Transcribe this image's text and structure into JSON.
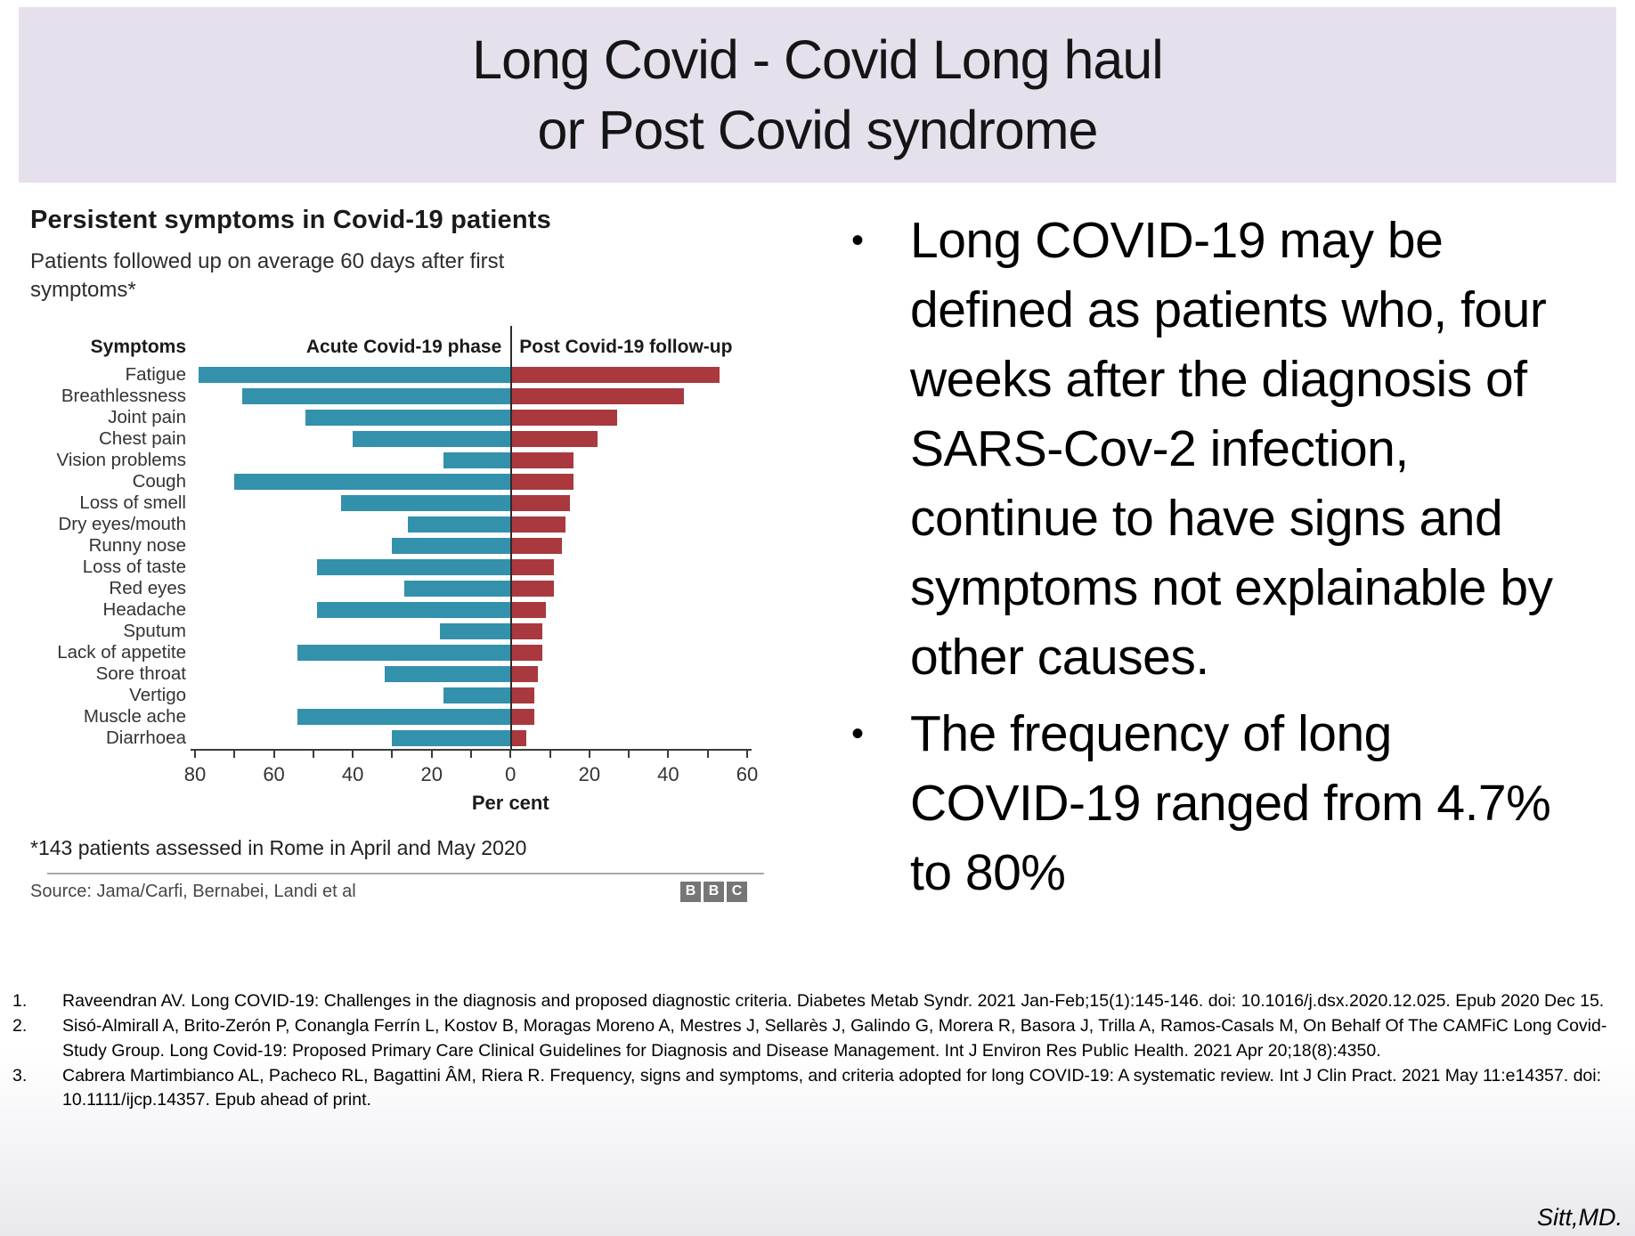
{
  "header": {
    "title_line1": "Long Covid - Covid Long haul",
    "title_line2": "or Post Covid syndrome",
    "band_color": "#e5e0ec"
  },
  "chart": {
    "title": "Persistent symptoms in Covid-19 patients",
    "subtitle": "Patients followed up on average 60 days after first symptoms*",
    "columns": {
      "symptoms": "Symptoms",
      "acute": "Acute Covid-19 phase",
      "post": "Post Covid-19 follow-up"
    },
    "percent_label": "Per cent",
    "footnote": "*143 patients assessed in Rome in April and May 2020",
    "source": "Source: Jama/Carfi, Bernabei, Landi et al",
    "logo_letters": [
      "B",
      "B",
      "C"
    ],
    "colors": {
      "acute_bar": "#3391ab",
      "post_bar": "#a9393e"
    }
  },
  "chart_data": {
    "type": "bar",
    "subtype": "diverging-horizontal",
    "title": "Persistent symptoms in Covid-19 patients",
    "categories": [
      "Fatigue",
      "Breathlessness",
      "Joint pain",
      "Chest pain",
      "Vision problems",
      "Cough",
      "Loss of smell",
      "Dry eyes/mouth",
      "Runny nose",
      "Loss of taste",
      "Red eyes",
      "Headache",
      "Sputum",
      "Lack of appetite",
      "Sore throat",
      "Vertigo",
      "Muscle ache",
      "Diarrhoea"
    ],
    "series": [
      {
        "name": "Acute Covid-19 phase",
        "direction": "left",
        "color": "#3391ab",
        "values": [
          79,
          68,
          52,
          40,
          17,
          70,
          43,
          26,
          30,
          49,
          27,
          49,
          18,
          54,
          32,
          17,
          54,
          30
        ]
      },
      {
        "name": "Post Covid-19 follow-up",
        "direction": "right",
        "color": "#a9393e",
        "values": [
          53,
          44,
          27,
          22,
          16,
          16,
          15,
          14,
          13,
          11,
          11,
          9,
          8,
          8,
          7,
          6,
          6,
          4
        ]
      }
    ],
    "xlabel": "Per cent",
    "x_tick_labels": [
      80,
      60,
      40,
      20,
      0,
      20,
      40,
      60
    ],
    "x_tick_positions": [
      -80,
      -60,
      -40,
      -20,
      0,
      20,
      40,
      60
    ],
    "minor_tick_step": 10,
    "xlim": {
      "left_max": 80,
      "right_max": 60
    },
    "grid": false,
    "legend_position": "column headers above plot"
  },
  "bullets": [
    {
      "text": "Long COVID-19 may be defined as patients who, four weeks after the diagnosis of SARS-Cov-2 infection, continue to have signs and symptoms not explainable by other causes."
    },
    {
      "text": " The frequency of long COVID-19 ranged from 4.7% to 80%"
    }
  ],
  "references": [
    {
      "num": "1.",
      "text": "Raveendran AV. Long COVID-19: Challenges in the diagnosis and proposed diagnostic criteria. Diabetes Metab Syndr. 2021 Jan-Feb;15(1):145-146. doi: 10.1016/j.dsx.2020.12.025. Epub 2020 Dec 15."
    },
    {
      "num": "2.",
      "text": "Sisó-Almirall A, Brito-Zerón P, Conangla Ferrín L, Kostov B, Moragas Moreno A, Mestres J, Sellarès J, Galindo G, Morera R, Basora J, Trilla A, Ramos-Casals M, On Behalf Of The CAMFiC Long Covid-Study Group. Long Covid-19: Proposed Primary Care Clinical Guidelines for Diagnosis and Disease Management. Int J Environ Res Public Health. 2021 Apr 20;18(8):4350."
    },
    {
      "num": "3.",
      "text": "Cabrera Martimbianco AL, Pacheco RL, Bagattini ÂM, Riera R. Frequency, signs and symptoms, and criteria adopted for long COVID-19: A systematic review. Int J Clin Pract. 2021 May 11:e14357. doi: 10.1111/ijcp.14357. Epub ahead of print."
    }
  ],
  "signature": "Sitt,MD."
}
